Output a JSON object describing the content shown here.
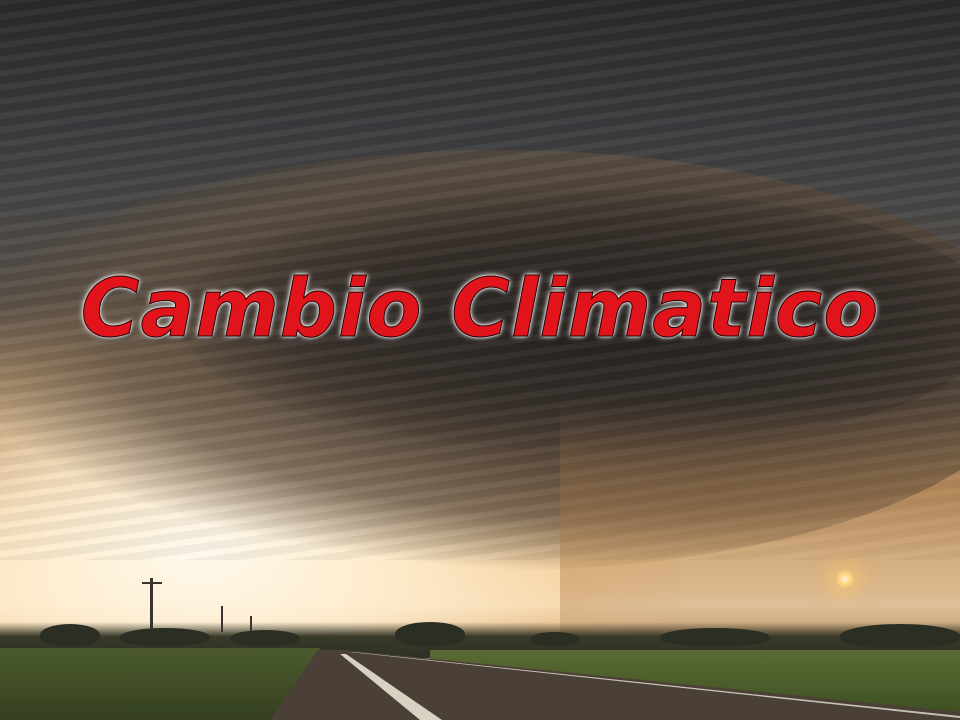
{
  "slide": {
    "title": "Cambio Climatico"
  },
  "image": {
    "subject": "supercell-storm-over-highway",
    "colors": {
      "title_fill": "#e0141a",
      "title_outline": "#ffffff",
      "sky_glow": "#f7e7c8",
      "storm_cloud": "#3a332e"
    }
  }
}
